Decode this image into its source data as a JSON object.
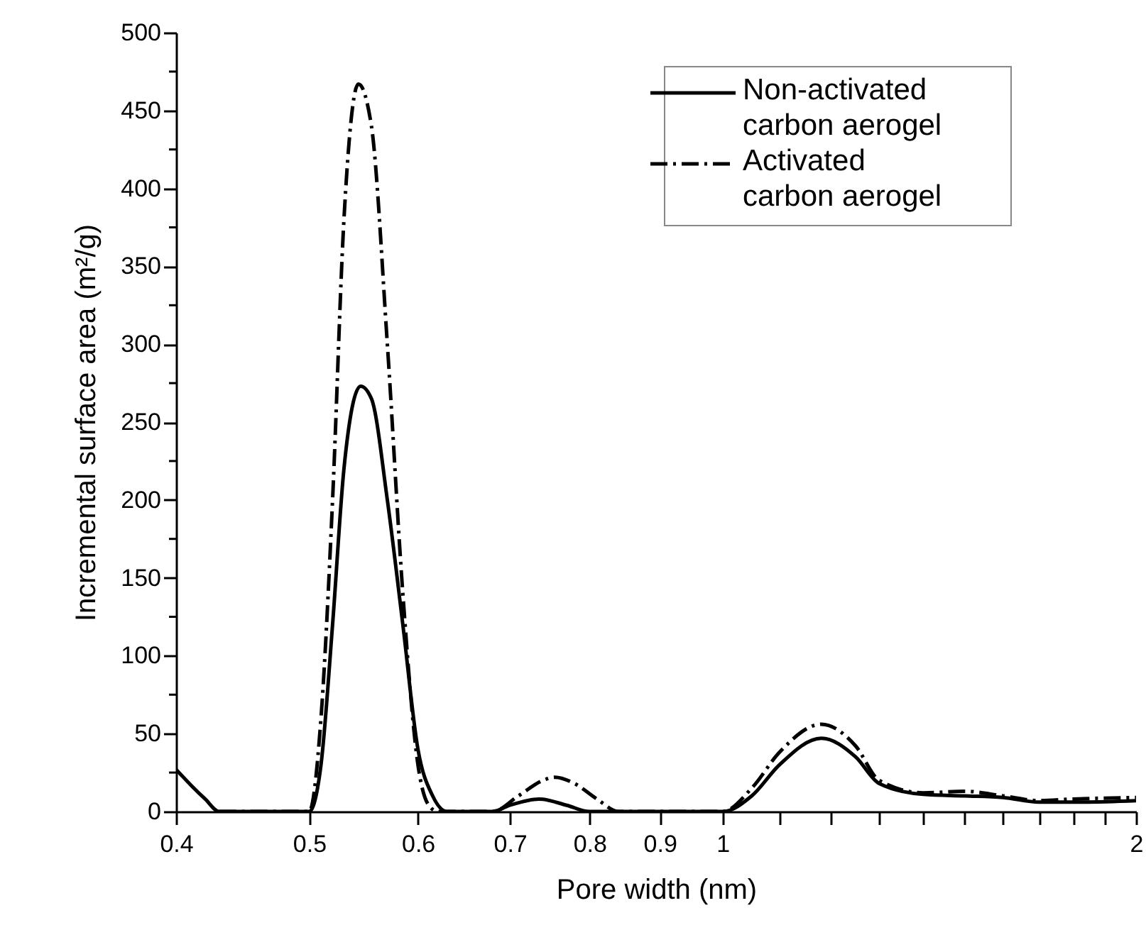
{
  "chart_data": {
    "type": "line",
    "xlabel": "Pore width (nm)",
    "ylabel": "Incremental surface area (m²/g)",
    "log": "x",
    "xlim": [
      0.4,
      2
    ],
    "xticks": [
      0.4,
      0.5,
      0.6,
      0.7,
      0.8,
      0.9,
      1,
      {
        "value": 1.1,
        "label": null
      },
      {
        "value": 1.2,
        "label": null
      },
      {
        "value": 1.3,
        "label": null
      },
      {
        "value": 1.4,
        "label": null
      },
      {
        "value": 1.5,
        "label": null
      },
      {
        "value": 1.6,
        "label": null
      },
      {
        "value": 1.7,
        "label": null
      },
      {
        "value": 1.8,
        "label": null
      },
      {
        "value": 1.9,
        "label": null
      },
      2
    ],
    "ylim": [
      0,
      500
    ],
    "yticks": [
      0,
      {
        "value": 25,
        "label": null
      },
      50,
      {
        "value": 75,
        "label": null
      },
      100,
      {
        "value": 125,
        "label": null
      },
      150,
      {
        "value": 175,
        "label": null
      },
      200,
      {
        "value": 225,
        "label": null
      },
      250,
      {
        "value": 275,
        "label": null
      },
      300,
      {
        "value": 325,
        "label": null
      },
      350,
      {
        "value": 375,
        "label": null
      },
      400,
      {
        "value": 425,
        "label": null
      },
      450,
      {
        "value": 475,
        "label": null
      },
      500
    ],
    "legend": "top right",
    "series": [
      {
        "name": "Non-activated carbon aerogel",
        "color": "#000000",
        "line_style": "solid",
        "x": [
          0.4,
          0.41,
          0.42,
          0.43,
          0.5,
          0.51,
          0.52,
          0.53,
          0.545,
          0.555,
          0.57,
          0.585,
          0.6,
          0.615,
          0.63,
          0.68,
          0.7,
          0.735,
          0.77,
          0.8,
          1.0,
          1.05,
          1.1,
          1.18,
          1.25,
          1.3,
          1.4,
          1.5,
          1.6,
          1.7,
          1.8,
          2.0
        ],
        "values": [
          27,
          17,
          8,
          0,
          0,
          30,
          120,
          220,
          273,
          265,
          200,
          120,
          40,
          10,
          0,
          0,
          4,
          8,
          4,
          0,
          0,
          10,
          30,
          47,
          35,
          18,
          11,
          10,
          9,
          6,
          6,
          7
        ]
      },
      {
        "name": "Activated carbon aerogel",
        "color": "#000000",
        "line_style": "dashdot",
        "x": [
          0.43,
          0.5,
          0.51,
          0.52,
          0.53,
          0.543,
          0.555,
          0.57,
          0.585,
          0.6,
          0.61,
          0.62,
          0.68,
          0.71,
          0.74,
          0.755,
          0.78,
          0.81,
          0.84,
          1.0,
          1.05,
          1.1,
          1.18,
          1.25,
          1.3,
          1.4,
          1.5,
          1.6,
          1.7,
          1.8,
          2.0
        ],
        "values": [
          0,
          0,
          60,
          200,
          380,
          467,
          440,
          300,
          140,
          30,
          5,
          0,
          0,
          10,
          20,
          22,
          18,
          8,
          0,
          0,
          15,
          38,
          56,
          42,
          20,
          12,
          13,
          10,
          7,
          8,
          9
        ]
      }
    ]
  }
}
